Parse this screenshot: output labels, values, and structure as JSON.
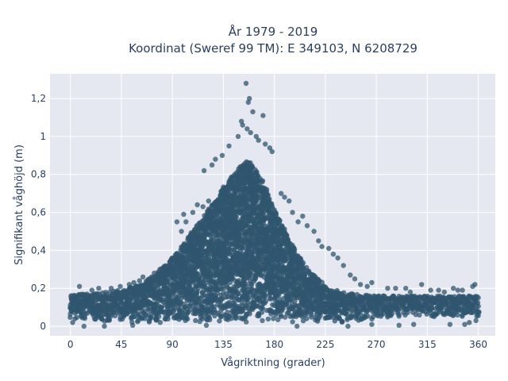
{
  "chart_data": {
    "type": "scatter",
    "title_lines": [
      "År 1979 - 2019",
      "Koordinat (Sweref 99 TM): E 349103, N 6208729"
    ],
    "xlabel": "Vågriktning (grader)",
    "ylabel": "Signifikant våghöjd (m)",
    "xlim": [
      -18,
      375
    ],
    "ylim": [
      -0.05,
      1.33
    ],
    "xticks": [
      0,
      45,
      90,
      135,
      180,
      225,
      270,
      315,
      360
    ],
    "xtick_labels": [
      "0",
      "45",
      "90",
      "135",
      "180",
      "225",
      "270",
      "315",
      "360"
    ],
    "yticks": [
      0,
      0.2,
      0.4,
      0.6,
      0.8,
      1.0,
      1.2
    ],
    "ytick_labels": [
      "0",
      "0,2",
      "0,4",
      "0,6",
      "0,8",
      "1",
      "1,2"
    ],
    "grid": true,
    "background_color": "#e5e8f0",
    "grid_color": "#ffffff",
    "marker_color": "#30566f",
    "envelope": {
      "x": [
        0,
        10,
        20,
        30,
        45,
        60,
        75,
        90,
        100,
        110,
        120,
        130,
        140,
        150,
        155,
        160,
        165,
        170,
        180,
        190,
        200,
        210,
        220,
        230,
        240,
        250,
        260,
        270,
        290,
        310,
        330,
        345,
        360
      ],
      "upper": [
        0.16,
        0.17,
        0.17,
        0.18,
        0.19,
        0.22,
        0.27,
        0.36,
        0.44,
        0.52,
        0.6,
        0.69,
        0.77,
        0.84,
        0.87,
        0.86,
        0.82,
        0.76,
        0.62,
        0.5,
        0.38,
        0.3,
        0.24,
        0.2,
        0.18,
        0.17,
        0.165,
        0.16,
        0.16,
        0.16,
        0.16,
        0.16,
        0.16
      ],
      "lower": [
        0.04,
        0.03,
        0.02,
        0.02,
        0.02,
        0.02,
        0.02,
        0.02,
        0.02,
        0.02,
        0.02,
        0.02,
        0.02,
        0.02,
        0.02,
        0.02,
        0.02,
        0.02,
        0.02,
        0.02,
        0.02,
        0.02,
        0.02,
        0.02,
        0.02,
        0.03,
        0.03,
        0.04,
        0.05,
        0.05,
        0.05,
        0.05,
        0.05
      ]
    },
    "outliers": [
      [
        155,
        1.28
      ],
      [
        158,
        1.2
      ],
      [
        157,
        1.18
      ],
      [
        161,
        1.13
      ],
      [
        170,
        1.11
      ],
      [
        151,
        1.08
      ],
      [
        152,
        1.06
      ],
      [
        156,
        1.04
      ],
      [
        159,
        1.02
      ],
      [
        164,
        1.0
      ],
      [
        148,
        1.0
      ],
      [
        166,
        0.98
      ],
      [
        172,
        0.96
      ],
      [
        176,
        0.94
      ],
      [
        178,
        0.92
      ],
      [
        140,
        0.95
      ],
      [
        128,
        0.88
      ],
      [
        134,
        0.9
      ],
      [
        118,
        0.82
      ],
      [
        125,
        0.85
      ],
      [
        100,
        0.59
      ],
      [
        102,
        0.55
      ],
      [
        108,
        0.6
      ],
      [
        112,
        0.64
      ],
      [
        117,
        0.63
      ],
      [
        122,
        0.66
      ],
      [
        94,
        0.55
      ],
      [
        98,
        0.5
      ],
      [
        186,
        0.7
      ],
      [
        189,
        0.68
      ],
      [
        193,
        0.66
      ],
      [
        196,
        0.6
      ],
      [
        201,
        0.55
      ],
      [
        205,
        0.58
      ],
      [
        209,
        0.53
      ],
      [
        215,
        0.5
      ],
      [
        219,
        0.45
      ],
      [
        222,
        0.42
      ],
      [
        228,
        0.41
      ],
      [
        232,
        0.38
      ],
      [
        236,
        0.36
      ],
      [
        241,
        0.32
      ],
      [
        247,
        0.27
      ],
      [
        251,
        0.25
      ],
      [
        256,
        0.22
      ],
      [
        262,
        0.21
      ],
      [
        266,
        0.23
      ],
      [
        280,
        0.2
      ],
      [
        287,
        0.2
      ],
      [
        296,
        0.2
      ],
      [
        300,
        0.18
      ],
      [
        310,
        0.22
      ],
      [
        318,
        0.19
      ],
      [
        325,
        0.19
      ],
      [
        330,
        0.18
      ],
      [
        338,
        0.2
      ],
      [
        342,
        0.19
      ],
      [
        346,
        0.19
      ],
      [
        357,
        0.22
      ],
      [
        355,
        0.21
      ],
      [
        8,
        0.21
      ],
      [
        19,
        0.19
      ],
      [
        25,
        0.2
      ],
      [
        36,
        0.2
      ],
      [
        44,
        0.21
      ],
      [
        52,
        0.22
      ],
      [
        61,
        0.24
      ],
      [
        68,
        0.24
      ],
      [
        74,
        0.28
      ],
      [
        79,
        0.3
      ],
      [
        83,
        0.31
      ],
      [
        64,
        0.26
      ],
      [
        56,
        0.23
      ],
      [
        2,
        0.02
      ],
      [
        12,
        0.0
      ],
      [
        30,
        0.0
      ],
      [
        55,
        0.005
      ],
      [
        120,
        0.005
      ],
      [
        200,
        0.0
      ],
      [
        245,
        0.0
      ],
      [
        266,
        0.01
      ],
      [
        290,
        0.005
      ],
      [
        303,
        0.01
      ],
      [
        335,
        0.01
      ],
      [
        352,
        0.02
      ],
      [
        358,
        0.03
      ],
      [
        348,
        0.01
      ]
    ]
  }
}
